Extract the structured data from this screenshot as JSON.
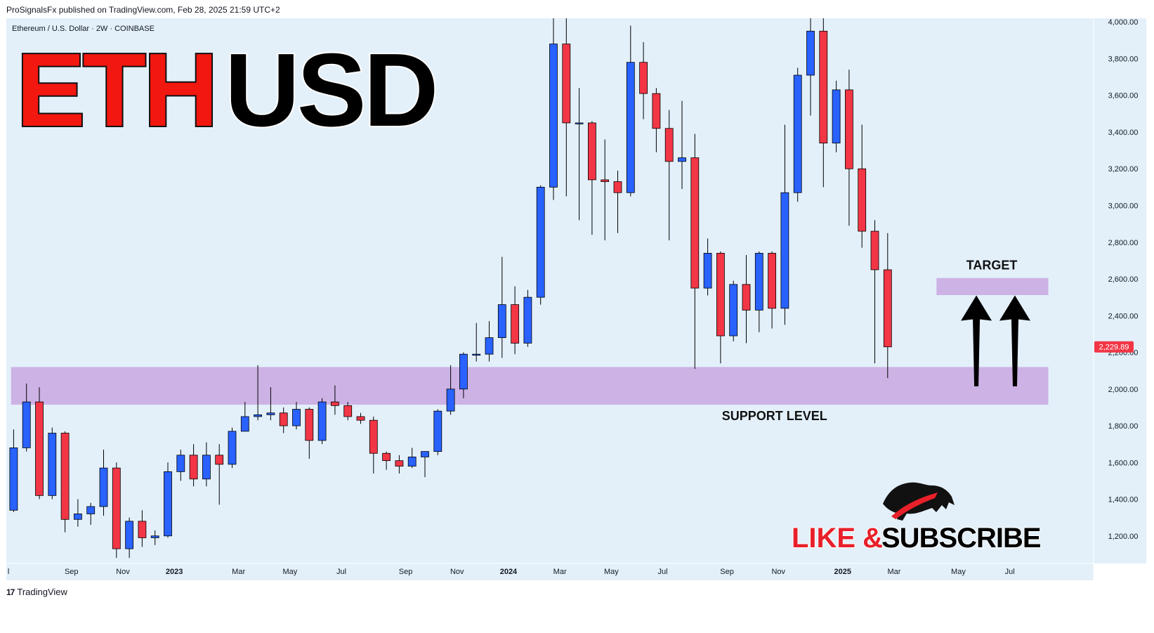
{
  "header": {
    "published_line": "ProSignalsFx published on TradingView.com, Feb 28, 2025 21:59 UTC+2"
  },
  "symbol_line": "Ethereum / U.S. Dollar · 2W · COINBASE",
  "banner": {
    "part1": "ETH",
    "part2": "USD",
    "part1_color": "#f2170f",
    "part2_color": "#000000"
  },
  "footer": {
    "brand": "TradingView",
    "logo_text": "17"
  },
  "promo": {
    "like": "LIKE",
    "amp": "&",
    "subscribe": "SUBSCRIBE",
    "like_color": "#e8202a",
    "subscribe_color": "#000000"
  },
  "colors": {
    "up": "#2962ff",
    "down": "#f23645",
    "zone": "#c9a7e0",
    "background": "#e3f0fa",
    "price_tag": "#f23645"
  },
  "chart_data": {
    "type": "candlestick",
    "interval": "2W",
    "ylim": [
      1050,
      4020
    ],
    "y_ticks": [
      1200,
      1400,
      1600,
      1800,
      2000,
      2200,
      2400,
      2600,
      2800,
      3000,
      3200,
      3400,
      3600,
      3800,
      4000
    ],
    "y_tick_labels": [
      "1,200.00",
      "1,400.00",
      "1,600.00",
      "1,800.00",
      "2,000.00",
      "2,200.00",
      "2,400.00",
      "2,600.00",
      "2,800.00",
      "3,000.00",
      "3,200.00",
      "3,400.00",
      "3,600.00",
      "3,800.00",
      "4,000.00"
    ],
    "x_labels": [
      {
        "i": -0.4,
        "text": "l",
        "bold": false
      },
      {
        "i": 4.5,
        "text": "Sep",
        "bold": false
      },
      {
        "i": 8.5,
        "text": "Nov",
        "bold": false
      },
      {
        "i": 12.5,
        "text": "2023",
        "bold": true
      },
      {
        "i": 17.5,
        "text": "Mar",
        "bold": false
      },
      {
        "i": 21.5,
        "text": "May",
        "bold": false
      },
      {
        "i": 25.5,
        "text": "Jul",
        "bold": false
      },
      {
        "i": 30.5,
        "text": "Sep",
        "bold": false
      },
      {
        "i": 34.5,
        "text": "Nov",
        "bold": false
      },
      {
        "i": 38.5,
        "text": "2024",
        "bold": true
      },
      {
        "i": 42.5,
        "text": "Mar",
        "bold": false
      },
      {
        "i": 46.5,
        "text": "May",
        "bold": false
      },
      {
        "i": 50.5,
        "text": "Jul",
        "bold": false
      },
      {
        "i": 55.5,
        "text": "Sep",
        "bold": false
      },
      {
        "i": 59.5,
        "text": "Nov",
        "bold": false
      },
      {
        "i": 64.5,
        "text": "2025",
        "bold": true
      },
      {
        "i": 68.5,
        "text": "Mar",
        "bold": false
      },
      {
        "i": 73.5,
        "text": "May",
        "bold": false
      },
      {
        "i": 77.5,
        "text": "Jul",
        "bold": false
      }
    ],
    "candles": [
      [
        1340,
        1680,
        1330,
        1780
      ],
      [
        1680,
        1930,
        1660,
        2030
      ],
      [
        1930,
        1420,
        1400,
        2010
      ],
      [
        1420,
        1760,
        1400,
        1790
      ],
      [
        1760,
        1290,
        1220,
        1770
      ],
      [
        1290,
        1320,
        1250,
        1400
      ],
      [
        1320,
        1360,
        1260,
        1380
      ],
      [
        1360,
        1570,
        1310,
        1670
      ],
      [
        1570,
        1130,
        1080,
        1600
      ],
      [
        1130,
        1280,
        1080,
        1300
      ],
      [
        1280,
        1190,
        1140,
        1340
      ],
      [
        1190,
        1200,
        1150,
        1230
      ],
      [
        1200,
        1550,
        1190,
        1600
      ],
      [
        1550,
        1640,
        1500,
        1670
      ],
      [
        1640,
        1510,
        1470,
        1700
      ],
      [
        1510,
        1640,
        1470,
        1710
      ],
      [
        1640,
        1590,
        1370,
        1700
      ],
      [
        1590,
        1770,
        1570,
        1790
      ],
      [
        1770,
        1850,
        1770,
        1930
      ],
      [
        1850,
        1860,
        1830,
        2130
      ],
      [
        1860,
        1870,
        1830,
        2010
      ],
      [
        1870,
        1800,
        1760,
        1900
      ],
      [
        1800,
        1890,
        1780,
        1930
      ],
      [
        1890,
        1720,
        1620,
        1900
      ],
      [
        1720,
        1930,
        1700,
        1950
      ],
      [
        1930,
        1910,
        1860,
        2020
      ],
      [
        1910,
        1850,
        1830,
        1930
      ],
      [
        1850,
        1830,
        1810,
        1870
      ],
      [
        1830,
        1650,
        1540,
        1850
      ],
      [
        1650,
        1610,
        1560,
        1660
      ],
      [
        1610,
        1580,
        1540,
        1640
      ],
      [
        1580,
        1630,
        1570,
        1680
      ],
      [
        1630,
        1660,
        1520,
        1660
      ],
      [
        1660,
        1880,
        1640,
        1890
      ],
      [
        1880,
        2000,
        1860,
        2130
      ],
      [
        2000,
        2190,
        1950,
        2200
      ],
      [
        2190,
        2190,
        2150,
        2360
      ],
      [
        2190,
        2280,
        2150,
        2370
      ],
      [
        2280,
        2460,
        2170,
        2720
      ],
      [
        2460,
        2250,
        2190,
        2560
      ],
      [
        2250,
        2500,
        2230,
        2540
      ],
      [
        2500,
        3100,
        2460,
        3110
      ],
      [
        3100,
        3880,
        3030,
        4060
      ],
      [
        3880,
        3450,
        3050,
        4020
      ],
      [
        3450,
        3450,
        2920,
        3640
      ],
      [
        3450,
        3140,
        2840,
        3460
      ],
      [
        3140,
        3130,
        2810,
        3360
      ],
      [
        3130,
        3070,
        2850,
        3190
      ],
      [
        3070,
        3780,
        3050,
        3980
      ],
      [
        3780,
        3610,
        3470,
        3890
      ],
      [
        3610,
        3420,
        3290,
        3640
      ],
      [
        3420,
        3240,
        2810,
        3520
      ],
      [
        3240,
        3260,
        3090,
        3570
      ],
      [
        3260,
        2550,
        2110,
        3390
      ],
      [
        2550,
        2740,
        2510,
        2820
      ],
      [
        2740,
        2290,
        2140,
        2750
      ],
      [
        2290,
        2570,
        2260,
        2590
      ],
      [
        2570,
        2430,
        2250,
        2730
      ],
      [
        2430,
        2740,
        2310,
        2750
      ],
      [
        2740,
        2440,
        2330,
        2750
      ],
      [
        2440,
        3070,
        2350,
        3440
      ],
      [
        3070,
        3710,
        3020,
        3750
      ],
      [
        3710,
        3950,
        3490,
        4110
      ],
      [
        3950,
        3340,
        3100,
        4100
      ],
      [
        3340,
        3630,
        3290,
        3680
      ],
      [
        3630,
        3200,
        2890,
        3740
      ],
      [
        3200,
        2860,
        2770,
        3440
      ],
      [
        2860,
        2650,
        2140,
        2920
      ],
      [
        2650,
        2230,
        2060,
        2850
      ]
    ],
    "last_price": "2,229.89",
    "zones": [
      {
        "label": "SUPPORT LEVEL",
        "low": 1915,
        "high": 2120,
        "i_start": -0.2,
        "i_end": 80.5
      },
      {
        "label": "TARGET",
        "low": 2512,
        "high": 2605,
        "i_start": 71.8,
        "i_end": 80.5
      }
    ],
    "arrows": [
      {
        "i": 74.9,
        "from": 2015,
        "to": 2510
      },
      {
        "i": 77.9,
        "from": 2015,
        "to": 2510
      }
    ]
  }
}
